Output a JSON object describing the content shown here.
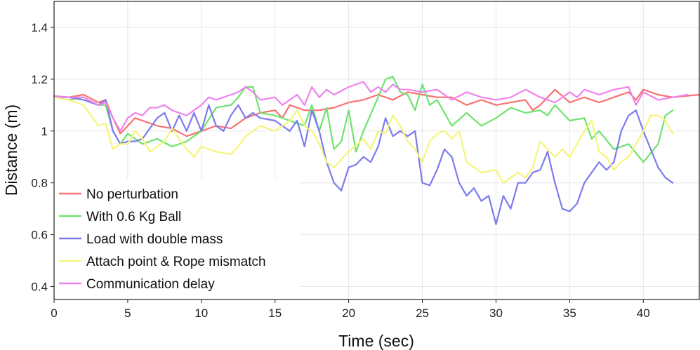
{
  "chart_data": {
    "type": "line",
    "title": "",
    "xlabel": "Time (sec)",
    "ylabel": "Distance (m)",
    "xlim": [
      0,
      43.8
    ],
    "ylim": [
      0.35,
      1.5
    ],
    "x_ticks": [
      0,
      5,
      10,
      15,
      20,
      25,
      30,
      35,
      40
    ],
    "x_tick_labels": [
      "0",
      "5",
      "10",
      "15",
      "20",
      "25",
      "30",
      "35",
      "40"
    ],
    "y_ticks": [
      0.4,
      0.6,
      0.8,
      1.0,
      1.2,
      1.4
    ],
    "y_tick_labels": [
      "0.4",
      "0.6",
      "0.8",
      "1",
      "1.2",
      "1.4"
    ],
    "grid": true,
    "legend_position": "bottom-left",
    "series": [
      {
        "name": "No perturbation",
        "color": "#f87171",
        "x": [
          0,
          1,
          2,
          3,
          3.5,
          4,
          4.5,
          5,
          5.5,
          6,
          7,
          8,
          9,
          10,
          11,
          12,
          13,
          14,
          15,
          15.5,
          16,
          17,
          18,
          19,
          20,
          21,
          22,
          23,
          24,
          25,
          26,
          27,
          28,
          29,
          30,
          31,
          32,
          32.5,
          33,
          34,
          35,
          36,
          37,
          38,
          39,
          39.5,
          40,
          41,
          42,
          43.8
        ],
        "y": [
          1.135,
          1.13,
          1.14,
          1.11,
          1.12,
          1.05,
          0.99,
          1.02,
          1.05,
          1.04,
          1.02,
          1.01,
          0.98,
          1.0,
          1.02,
          1.01,
          1.05,
          1.07,
          1.08,
          1.05,
          1.1,
          1.08,
          1.08,
          1.09,
          1.11,
          1.12,
          1.14,
          1.12,
          1.15,
          1.14,
          1.13,
          1.13,
          1.1,
          1.12,
          1.1,
          1.11,
          1.12,
          1.08,
          1.1,
          1.16,
          1.11,
          1.13,
          1.11,
          1.13,
          1.15,
          1.12,
          1.16,
          1.14,
          1.13,
          1.14
        ]
      },
      {
        "name": "With 0.6 Kg Ball",
        "color": "#6ee36e",
        "x": [
          0,
          1,
          2,
          3,
          3.5,
          4,
          4.5,
          5,
          6,
          7,
          8,
          9,
          10,
          11,
          12,
          12.5,
          13,
          13.5,
          14,
          15,
          16,
          17,
          17.5,
          18,
          18.5,
          19,
          19.5,
          20,
          20.5,
          21,
          22,
          22.5,
          23,
          23.5,
          24,
          24.5,
          25,
          25.5,
          26,
          27,
          28,
          29,
          30,
          31,
          32,
          33,
          33.5,
          34,
          35,
          36,
          36.5,
          37,
          38,
          39,
          40,
          41,
          41.5,
          42
        ],
        "y": [
          1.13,
          1.12,
          1.13,
          1.1,
          1.1,
          1.0,
          0.95,
          0.99,
          0.95,
          0.97,
          0.94,
          0.96,
          1.0,
          1.09,
          1.1,
          1.13,
          1.17,
          1.17,
          1.07,
          1.06,
          1.04,
          1.02,
          1.1,
          1.0,
          1.09,
          0.93,
          0.96,
          1.08,
          0.92,
          1.0,
          1.13,
          1.2,
          1.21,
          1.15,
          1.14,
          1.08,
          1.18,
          1.1,
          1.12,
          1.02,
          1.07,
          1.02,
          1.05,
          1.09,
          1.07,
          1.08,
          1.06,
          1.1,
          1.04,
          1.05,
          0.97,
          1.0,
          0.93,
          0.95,
          0.88,
          0.95,
          1.06,
          1.08
        ]
      },
      {
        "name": "Load with double mass",
        "color": "#7b7bef",
        "x": [
          0,
          1,
          2,
          3,
          3.5,
          4,
          4.5,
          5,
          5.5,
          6,
          7,
          7.5,
          8,
          8.5,
          9,
          9.5,
          10,
          10.5,
          11,
          11.5,
          12,
          12.5,
          13,
          13.5,
          14,
          15,
          16,
          16.5,
          17,
          17.5,
          18,
          18.5,
          19,
          19.5,
          20,
          20.5,
          21,
          21.5,
          22,
          22.5,
          23,
          23.5,
          24,
          24.5,
          25,
          25.5,
          26,
          26.5,
          27,
          27.5,
          28,
          28.5,
          29,
          29.5,
          30,
          30.5,
          31,
          31.5,
          32,
          32.5,
          33,
          33.5,
          34,
          34.5,
          35,
          35.5,
          36,
          36.5,
          37,
          37.5,
          38,
          38.5,
          39,
          39.5,
          40,
          40.5,
          41,
          41.5,
          42
        ],
        "y": [
          1.13,
          1.13,
          1.12,
          1.1,
          1.12,
          1.0,
          0.95,
          0.96,
          0.96,
          0.97,
          1.05,
          1.07,
          1.0,
          1.06,
          1.0,
          1.07,
          1.0,
          1.1,
          1.02,
          1.0,
          1.06,
          1.1,
          1.05,
          1.07,
          1.05,
          1.04,
          1.0,
          1.04,
          0.94,
          1.08,
          1.0,
          0.88,
          0.8,
          0.77,
          0.86,
          0.87,
          0.9,
          0.88,
          0.94,
          1.05,
          0.98,
          1.0,
          0.98,
          1.0,
          0.8,
          0.79,
          0.85,
          0.93,
          0.9,
          0.8,
          0.75,
          0.78,
          0.73,
          0.75,
          0.64,
          0.75,
          0.7,
          0.8,
          0.8,
          0.84,
          0.85,
          0.92,
          0.8,
          0.7,
          0.69,
          0.72,
          0.8,
          0.84,
          0.88,
          0.85,
          0.88,
          1.0,
          1.06,
          1.08,
          1.0,
          0.93,
          0.86,
          0.82,
          0.8
        ]
      },
      {
        "name": "Attach point & Rope mismatch",
        "color": "#f5f57a",
        "x": [
          0,
          1,
          2,
          3,
          3.5,
          4,
          4.5,
          5,
          5.5,
          6,
          6.5,
          7,
          7.5,
          8,
          9,
          9.5,
          10,
          11,
          12,
          12.5,
          13,
          14,
          15,
          16,
          16.5,
          17,
          17.5,
          18,
          18.5,
          19,
          20,
          21,
          21.5,
          22,
          22.5,
          23,
          23.5,
          24,
          24.5,
          25,
          25.5,
          26,
          26.5,
          27,
          27.5,
          28,
          28.5,
          29,
          30,
          30.5,
          31,
          31.5,
          32,
          32.5,
          33,
          33.5,
          34,
          34.5,
          35,
          35.5,
          36,
          36.5,
          37,
          37.5,
          38,
          38.5,
          39,
          39.5,
          40,
          40.5,
          41,
          41.5,
          42
        ],
        "y": [
          1.13,
          1.12,
          1.1,
          1.02,
          1.03,
          0.93,
          0.95,
          0.95,
          1.0,
          0.97,
          0.92,
          0.94,
          0.96,
          1.01,
          0.93,
          0.9,
          0.94,
          0.92,
          0.91,
          0.94,
          0.98,
          1.02,
          1.0,
          1.04,
          1.08,
          1.02,
          1.0,
          0.95,
          0.88,
          0.86,
          0.92,
          0.97,
          0.93,
          1.0,
          0.99,
          1.06,
          1.02,
          0.96,
          0.93,
          0.88,
          0.96,
          0.99,
          1.0,
          0.97,
          1.0,
          0.88,
          0.86,
          0.84,
          0.85,
          0.8,
          0.82,
          0.84,
          0.82,
          0.86,
          0.96,
          0.93,
          0.9,
          0.93,
          0.9,
          0.95,
          1.0,
          1.04,
          0.92,
          0.9,
          0.85,
          0.88,
          0.9,
          0.95,
          1.0,
          1.06,
          1.06,
          1.04,
          0.99
        ]
      },
      {
        "name": "Communication delay",
        "color": "#ee82ee",
        "x": [
          0,
          1,
          2,
          3,
          3.5,
          4,
          4.5,
          5,
          5.5,
          6,
          6.5,
          7,
          7.5,
          8,
          9,
          9.5,
          10,
          10.5,
          11,
          12,
          12.5,
          13,
          13.5,
          14,
          15,
          15.5,
          16,
          16.5,
          17,
          17.5,
          18,
          18.5,
          19,
          20,
          21,
          21.5,
          22,
          22.5,
          23,
          23.5,
          24,
          25,
          26,
          27,
          28,
          29,
          30,
          31,
          32,
          33,
          34,
          35,
          35.5,
          36,
          37,
          38,
          39,
          39.5,
          40,
          41,
          42,
          43
        ],
        "y": [
          1.135,
          1.13,
          1.13,
          1.1,
          1.11,
          1.05,
          1.0,
          1.05,
          1.07,
          1.06,
          1.09,
          1.09,
          1.1,
          1.08,
          1.06,
          1.08,
          1.1,
          1.13,
          1.12,
          1.14,
          1.15,
          1.17,
          1.15,
          1.12,
          1.13,
          1.1,
          1.12,
          1.14,
          1.1,
          1.17,
          1.13,
          1.16,
          1.14,
          1.17,
          1.19,
          1.15,
          1.17,
          1.15,
          1.18,
          1.16,
          1.16,
          1.15,
          1.16,
          1.12,
          1.15,
          1.13,
          1.12,
          1.13,
          1.16,
          1.13,
          1.11,
          1.15,
          1.13,
          1.16,
          1.14,
          1.16,
          1.17,
          1.1,
          1.15,
          1.12,
          1.13,
          1.14
        ]
      }
    ]
  }
}
